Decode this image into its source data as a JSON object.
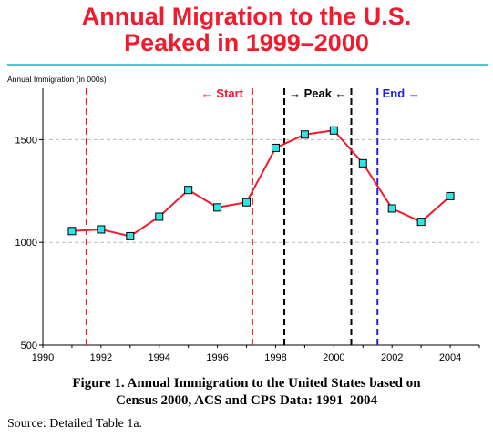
{
  "title": {
    "line1": "Annual Migration to the U.S.",
    "line2": "Peaked in 1999–2000"
  },
  "chart_data": {
    "type": "line",
    "ylabel": "Annual Immigration (in 000s)",
    "xlim": [
      1990,
      2005
    ],
    "ylim": [
      500,
      1750
    ],
    "x_ticks": [
      1990,
      1992,
      1994,
      1996,
      1998,
      2000,
      2002,
      2004
    ],
    "y_ticks": [
      500,
      1000,
      1500
    ],
    "gridlines_y": [
      1000,
      1500
    ],
    "series": [
      {
        "color": "#ee1c2e",
        "marker_color": "#2ee6e6",
        "x": [
          1991,
          1992,
          1993,
          1994,
          1995,
          1996,
          1997,
          1998,
          1999,
          2000,
          2001,
          2002,
          2003,
          2004
        ],
        "y": [
          1055,
          1063,
          1030,
          1125,
          1255,
          1170,
          1195,
          1460,
          1525,
          1545,
          1385,
          1165,
          1100,
          1225
        ]
      }
    ],
    "markers": [
      {
        "x": 1991.5,
        "label": "",
        "color": "#ee1c2e"
      },
      {
        "x": 1997.2,
        "label": "",
        "color": "#ee1c2e"
      },
      {
        "x": 1998.3,
        "label": "",
        "color": "#000000"
      },
      {
        "x": 2000.6,
        "label": "",
        "color": "#000000"
      },
      {
        "x": 2001.5,
        "label": "",
        "color": "#2222dd"
      }
    ],
    "annotations": [
      {
        "text": "← Start",
        "color": "#ee1c2e"
      },
      {
        "text": "→ Peak ←",
        "color": "#000000"
      },
      {
        "text": "End →",
        "color": "#2222dd"
      }
    ]
  },
  "caption": {
    "line1": "Figure 1.  Annual Immigration to the United States based on",
    "line2": "Census 2000, ACS and CPS Data:  1991–2004"
  },
  "source": "Source:  Detailed Table 1a."
}
